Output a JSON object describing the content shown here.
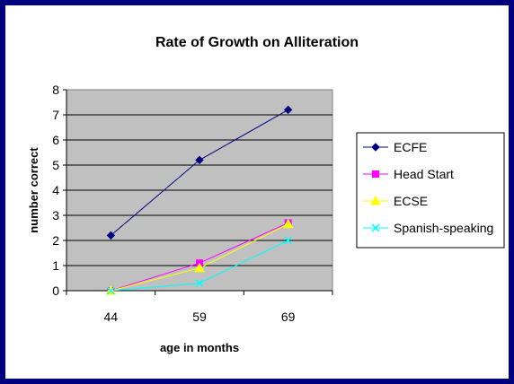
{
  "chart_data": {
    "type": "line",
    "title": "Rate of Growth on Alliteration",
    "xlabel": "age in months",
    "ylabel": "number correct",
    "categories": [
      "44",
      "59",
      "69"
    ],
    "ylim": [
      0,
      8
    ],
    "yticks": [
      0,
      1,
      2,
      3,
      4,
      5,
      6,
      7,
      8
    ],
    "grid": true,
    "legend_position": "right",
    "series": [
      {
        "name": "ECFE",
        "values": [
          2.2,
          5.2,
          7.2
        ],
        "color": "#00007f",
        "marker": "diamond"
      },
      {
        "name": "Head Start",
        "values": [
          0.0,
          1.1,
          2.7
        ],
        "color": "#ff00ff",
        "marker": "square"
      },
      {
        "name": "ECSE",
        "values": [
          0.0,
          0.9,
          2.65
        ],
        "color": "#ffff00",
        "marker": "triangle"
      },
      {
        "name": "Spanish-speaking",
        "values": [
          0.0,
          0.3,
          2.0
        ],
        "color": "#00ffff",
        "marker": "x"
      }
    ],
    "plot_background": "#c0c0c0"
  }
}
